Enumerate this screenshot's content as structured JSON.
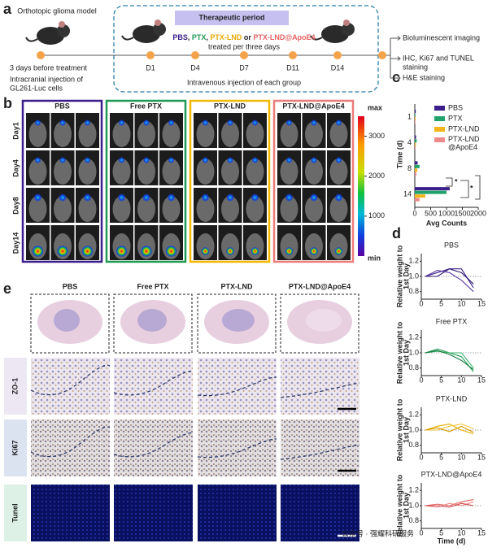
{
  "panel_labels": [
    "a",
    "b",
    "c",
    "d",
    "e"
  ],
  "timeline": {
    "model_label": "Orthotopic glioma model",
    "pre_treatment": "3 days before treatment",
    "injection": [
      "Intracranial injection of",
      "GL261-Luc cells"
    ],
    "period": "Therapeutic period",
    "groups_text": [
      {
        "text": "PBS",
        "color": "#3b1f8a"
      },
      {
        "text": ", ",
        "color": "#222222"
      },
      {
        "text": "PTX",
        "color": "#1f9a55"
      },
      {
        "text": ", ",
        "color": "#222222"
      },
      {
        "text": "PTX-LND",
        "color": "#e8a800"
      },
      {
        "text": " or ",
        "color": "#222222"
      },
      {
        "text": "PTX-LND@ApoE4",
        "color": "#e86060"
      }
    ],
    "schedule": "treated per three days",
    "days": [
      "D1",
      "D4",
      "D7",
      "D11",
      "D14"
    ],
    "route": "Intravenous injection of each group",
    "outcomes": [
      [
        "Bioluminescent imaging"
      ],
      [
        "IHC, Ki67 and TUNEL",
        "staining"
      ],
      [
        "H&E staining"
      ]
    ]
  },
  "imaging": {
    "groups": [
      {
        "name": "PBS",
        "color": "#3b1f8a"
      },
      {
        "name": "Free PTX",
        "color": "#1f9a55"
      },
      {
        "name": "PTX-LND",
        "color": "#f0b800"
      },
      {
        "name": "PTX-LND@ApoE4",
        "color": "#ee7b7b"
      }
    ],
    "days": [
      "Day1",
      "Day4",
      "Day8",
      "Day14"
    ],
    "colorbar": {
      "top_label": "max",
      "bottom_label": "min",
      "lim": [
        0,
        3500
      ],
      "ticks": [
        1000,
        2000,
        3000
      ]
    }
  },
  "chart_data": [
    {
      "type": "bar",
      "orientation": "horizontal",
      "xlabel": "Avg Counts",
      "ylabel": "Time (d)",
      "categories": [
        "1",
        "4",
        "8",
        "14"
      ],
      "series": [
        {
          "name": "PBS",
          "color": "#3b1f8a",
          "values": [
            30,
            40,
            90,
            1100
          ]
        },
        {
          "name": "PTX",
          "color": "#1fa36a",
          "values": [
            20,
            60,
            150,
            1000
          ]
        },
        {
          "name": "PTX-LND",
          "color": "#f2b51c",
          "values": [
            25,
            35,
            80,
            330
          ]
        },
        {
          "name": "PTX-LND@ApoE4",
          "color": "#f08a8a",
          "values": [
            20,
            25,
            50,
            150
          ]
        }
      ],
      "xlim": [
        0,
        2000
      ],
      "xticks": [
        0,
        500,
        1000,
        1500,
        2000
      ],
      "annotations": [
        "*",
        "*",
        "**"
      ]
    },
    {
      "type": "line",
      "title": "PBS",
      "ylabel": [
        "Relative weight to",
        "1st Day"
      ],
      "x": [
        1,
        4,
        7,
        10,
        13
      ],
      "xlim": [
        0,
        15
      ],
      "xticks": [
        0,
        5,
        10,
        15
      ],
      "ylim": [
        0.7,
        1.3
      ],
      "yticks": [
        {
          "value": 0.8,
          "label": "0.8"
        },
        {
          "value": 1,
          "label": "1.0"
        },
        {
          "value": 1.2,
          "label": "1.2"
        }
      ],
      "reference": 1,
      "series": [
        {
          "color": "#3b1f8a",
          "values": [
            1,
            1.05,
            1.1,
            1.1,
            0.85
          ]
        },
        {
          "color": "#5a3aa8",
          "values": [
            1,
            1.08,
            1.05,
            0.95,
            0.8
          ]
        },
        {
          "color": "#2a1570",
          "values": [
            1,
            1.0,
            1.1,
            1.05,
            0.9
          ]
        }
      ]
    },
    {
      "type": "line",
      "title": "Free PTX",
      "ylabel": [
        "Relative weight to",
        "1st Day"
      ],
      "x": [
        1,
        4,
        7,
        10,
        13
      ],
      "xlim": [
        0,
        15
      ],
      "xticks": [
        0,
        5,
        10,
        15
      ],
      "ylim": [
        0.7,
        1.3
      ],
      "yticks": [
        {
          "value": 0.8,
          "label": "0.8"
        },
        {
          "value": 1,
          "label": "1.0"
        },
        {
          "value": 1.2,
          "label": "1.2"
        }
      ],
      "reference": 1,
      "series": [
        {
          "color": "#1f9a55",
          "values": [
            1,
            1.05,
            1.0,
            0.95,
            0.75
          ]
        },
        {
          "color": "#3bb56e",
          "values": [
            1,
            1.02,
            1.0,
            1.0,
            0.8
          ]
        },
        {
          "color": "#137a40",
          "values": [
            1,
            1.03,
            0.98,
            0.9,
            0.78
          ]
        }
      ]
    },
    {
      "type": "line",
      "title": "PTX-LND",
      "ylabel": [
        "Relative weight to",
        "1st Day"
      ],
      "x": [
        1,
        4,
        7,
        10,
        13
      ],
      "xlim": [
        0,
        15
      ],
      "xticks": [
        0,
        5,
        10,
        15
      ],
      "ylim": [
        0.7,
        1.3
      ],
      "yticks": [
        {
          "value": 0.8,
          "label": "0.8"
        },
        {
          "value": 1,
          "label": "1.0"
        },
        {
          "value": 1.2,
          "label": "1.2"
        }
      ],
      "reference": 1,
      "series": [
        {
          "color": "#e8b000",
          "values": [
            1,
            1.05,
            1.08,
            1.0,
            0.95
          ]
        },
        {
          "color": "#f2c640",
          "values": [
            1,
            1.0,
            1.05,
            1.08,
            1.02
          ]
        },
        {
          "color": "#d49c00",
          "values": [
            1,
            1.03,
            0.98,
            1.05,
            0.97
          ]
        }
      ]
    },
    {
      "type": "line",
      "title": "PTX-LND@ApoE4",
      "ylabel": [
        "Relative weight to",
        "1st Day"
      ],
      "xlabel": "Time (d)",
      "x": [
        1,
        4,
        7,
        10,
        13
      ],
      "xlim": [
        0,
        15
      ],
      "xticks": [
        0,
        5,
        10,
        15
      ],
      "ylim": [
        0.7,
        1.3
      ],
      "yticks": [
        {
          "value": 0.8,
          "label": "0.8"
        },
        {
          "value": 1,
          "label": "1.0"
        },
        {
          "value": 1.2,
          "label": "1.2"
        }
      ],
      "reference": 1,
      "series": [
        {
          "color": "#e86060",
          "values": [
            1,
            1.02,
            1.0,
            1.05,
            1.08
          ]
        },
        {
          "color": "#f08a8a",
          "values": [
            1,
            0.98,
            1.03,
            1.0,
            1.05
          ]
        },
        {
          "color": "#d04848",
          "values": [
            1,
            1.0,
            0.98,
            1.03,
            1.0
          ]
        }
      ]
    }
  ],
  "histology": {
    "groups": [
      "PBS",
      "Free PTX",
      "PTX-LND",
      "PTX-LND@ApoE4"
    ],
    "stains": [
      {
        "name": "ZO-1",
        "color": "#c9a98c",
        "background": "#ece7f3"
      },
      {
        "name": "Ki67",
        "color": "#7a4a2a",
        "background": "#dbe3f1"
      },
      {
        "name": "Tunel",
        "color": "#22b862",
        "background": "#ddf1e6"
      }
    ],
    "watermark": "公众号 · 强耀科研服务"
  }
}
